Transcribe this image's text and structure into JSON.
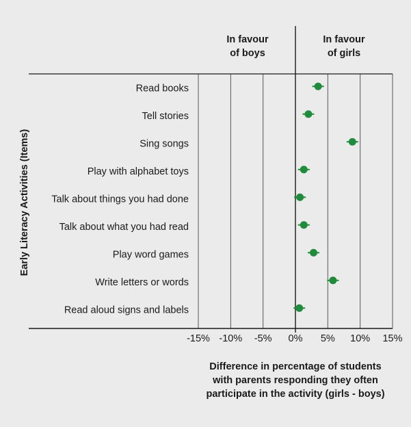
{
  "chart_data": {
    "type": "scatter",
    "title": "",
    "xlabel_lines": [
      "Difference in percentage of students",
      "with parents responding they often",
      "participate in the activity (girls - boys)"
    ],
    "ylabel": "Early Literacy Activities (Items)",
    "header_boys": [
      "In favour",
      "of boys"
    ],
    "header_girls": [
      "In favour",
      "of girls"
    ],
    "xlim": [
      -15,
      15
    ],
    "x_ticks": [
      -15,
      -10,
      -5,
      0,
      5,
      10,
      15
    ],
    "x_tick_labels": [
      "-15%",
      "-10%",
      "-5%",
      "0%",
      "5%",
      "10%",
      "15%"
    ],
    "grid": "vertical",
    "categories": [
      "Read books",
      "Tell stories",
      "Sing songs",
      "Play with alphabet toys",
      "Talk about things you had done",
      "Talk about what you had read",
      "Play word games",
      "Write letters or words",
      "Read aloud signs and labels"
    ],
    "values": [
      3.5,
      2.0,
      8.8,
      1.3,
      0.7,
      1.3,
      2.8,
      5.8,
      0.6
    ],
    "error": [
      0.9,
      0.9,
      0.9,
      0.9,
      0.9,
      0.9,
      0.9,
      0.9,
      0.9
    ],
    "marker_color": "#1e8c3a",
    "grid_color": "#555555",
    "axis_color": "#1a1a1a"
  }
}
